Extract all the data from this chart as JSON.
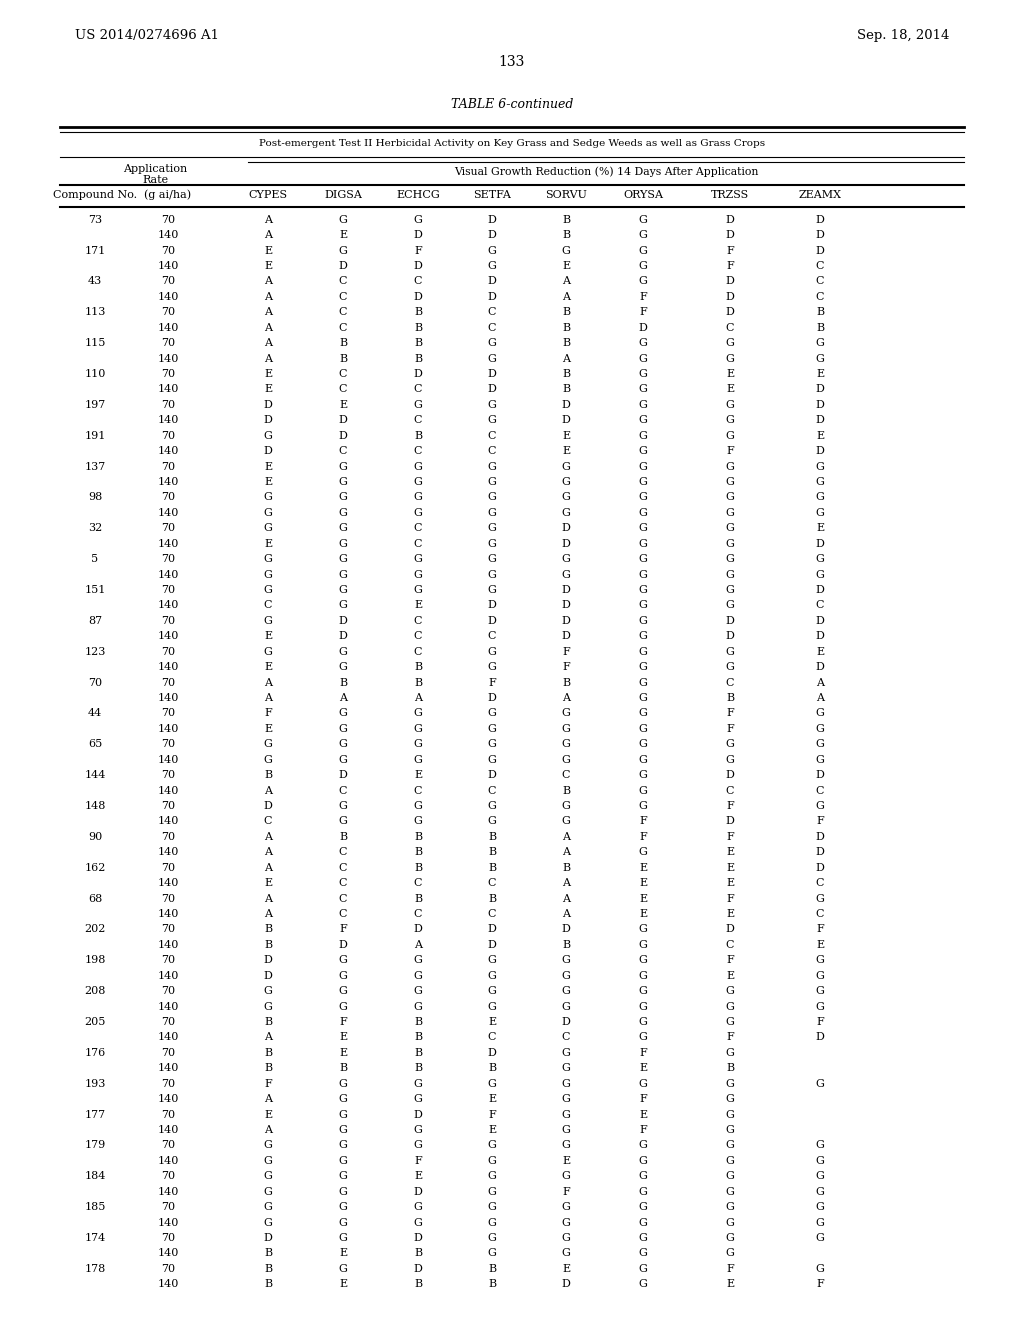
{
  "title_left": "US 2014/0274696 A1",
  "title_right": "Sep. 18, 2014",
  "page_number": "133",
  "table_title": "TABLE 6-continued",
  "subtitle": "Post-emergent Test II Herbicidal Activity on Key Grass and Sedge Weeds as well as Grass Crops",
  "col_headers": [
    "Compound No.",
    "(g ai/ha)",
    "CYPES",
    "DIGSA",
    "ECHCG",
    "SETFA",
    "SORVU",
    "ORYSA",
    "TRZSS",
    "ZEAMX"
  ],
  "rows": [
    [
      "73",
      "70",
      "A",
      "G",
      "G",
      "D",
      "B",
      "G",
      "D",
      "D"
    ],
    [
      "",
      "140",
      "A",
      "E",
      "D",
      "D",
      "B",
      "G",
      "D",
      "D"
    ],
    [
      "171",
      "70",
      "E",
      "G",
      "F",
      "G",
      "G",
      "G",
      "F",
      "D"
    ],
    [
      "",
      "140",
      "E",
      "D",
      "D",
      "G",
      "E",
      "G",
      "F",
      "C"
    ],
    [
      "43",
      "70",
      "A",
      "C",
      "C",
      "D",
      "A",
      "G",
      "D",
      "C"
    ],
    [
      "",
      "140",
      "A",
      "C",
      "D",
      "D",
      "A",
      "F",
      "D",
      "C"
    ],
    [
      "113",
      "70",
      "A",
      "C",
      "B",
      "C",
      "B",
      "F",
      "D",
      "B"
    ],
    [
      "",
      "140",
      "A",
      "C",
      "B",
      "C",
      "B",
      "D",
      "C",
      "B"
    ],
    [
      "115",
      "70",
      "A",
      "B",
      "B",
      "G",
      "B",
      "G",
      "G",
      "G"
    ],
    [
      "",
      "140",
      "A",
      "B",
      "B",
      "G",
      "A",
      "G",
      "G",
      "G"
    ],
    [
      "110",
      "70",
      "E",
      "C",
      "D",
      "D",
      "B",
      "G",
      "E",
      "E"
    ],
    [
      "",
      "140",
      "E",
      "C",
      "C",
      "D",
      "B",
      "G",
      "E",
      "D"
    ],
    [
      "197",
      "70",
      "D",
      "E",
      "G",
      "G",
      "D",
      "G",
      "G",
      "D"
    ],
    [
      "",
      "140",
      "D",
      "D",
      "C",
      "G",
      "D",
      "G",
      "G",
      "D"
    ],
    [
      "191",
      "70",
      "G",
      "D",
      "B",
      "C",
      "E",
      "G",
      "G",
      "E"
    ],
    [
      "",
      "140",
      "D",
      "C",
      "C",
      "C",
      "E",
      "G",
      "F",
      "D"
    ],
    [
      "137",
      "70",
      "E",
      "G",
      "G",
      "G",
      "G",
      "G",
      "G",
      "G"
    ],
    [
      "",
      "140",
      "E",
      "G",
      "G",
      "G",
      "G",
      "G",
      "G",
      "G"
    ],
    [
      "98",
      "70",
      "G",
      "G",
      "G",
      "G",
      "G",
      "G",
      "G",
      "G"
    ],
    [
      "",
      "140",
      "G",
      "G",
      "G",
      "G",
      "G",
      "G",
      "G",
      "G"
    ],
    [
      "32",
      "70",
      "G",
      "G",
      "C",
      "G",
      "D",
      "G",
      "G",
      "E"
    ],
    [
      "",
      "140",
      "E",
      "G",
      "C",
      "G",
      "D",
      "G",
      "G",
      "D"
    ],
    [
      "5",
      "70",
      "G",
      "G",
      "G",
      "G",
      "G",
      "G",
      "G",
      "G"
    ],
    [
      "",
      "140",
      "G",
      "G",
      "G",
      "G",
      "G",
      "G",
      "G",
      "G"
    ],
    [
      "151",
      "70",
      "G",
      "G",
      "G",
      "G",
      "D",
      "G",
      "G",
      "D"
    ],
    [
      "",
      "140",
      "C",
      "G",
      "E",
      "D",
      "D",
      "G",
      "G",
      "C"
    ],
    [
      "87",
      "70",
      "G",
      "D",
      "C",
      "D",
      "D",
      "G",
      "D",
      "D"
    ],
    [
      "",
      "140",
      "E",
      "D",
      "C",
      "C",
      "D",
      "G",
      "D",
      "D"
    ],
    [
      "123",
      "70",
      "G",
      "G",
      "C",
      "G",
      "F",
      "G",
      "G",
      "E"
    ],
    [
      "",
      "140",
      "E",
      "G",
      "B",
      "G",
      "F",
      "G",
      "G",
      "D"
    ],
    [
      "70",
      "70",
      "A",
      "B",
      "B",
      "F",
      "B",
      "G",
      "C",
      "A"
    ],
    [
      "",
      "140",
      "A",
      "A",
      "A",
      "D",
      "A",
      "G",
      "B",
      "A"
    ],
    [
      "44",
      "70",
      "F",
      "G",
      "G",
      "G",
      "G",
      "G",
      "F",
      "G"
    ],
    [
      "",
      "140",
      "E",
      "G",
      "G",
      "G",
      "G",
      "G",
      "F",
      "G"
    ],
    [
      "65",
      "70",
      "G",
      "G",
      "G",
      "G",
      "G",
      "G",
      "G",
      "G"
    ],
    [
      "",
      "140",
      "G",
      "G",
      "G",
      "G",
      "G",
      "G",
      "G",
      "G"
    ],
    [
      "144",
      "70",
      "B",
      "D",
      "E",
      "D",
      "C",
      "G",
      "D",
      "D"
    ],
    [
      "",
      "140",
      "A",
      "C",
      "C",
      "C",
      "B",
      "G",
      "C",
      "C"
    ],
    [
      "148",
      "70",
      "D",
      "G",
      "G",
      "G",
      "G",
      "G",
      "F",
      "G"
    ],
    [
      "",
      "140",
      "C",
      "G",
      "G",
      "G",
      "G",
      "F",
      "D",
      "F"
    ],
    [
      "90",
      "70",
      "A",
      "B",
      "B",
      "B",
      "A",
      "F",
      "F",
      "D"
    ],
    [
      "",
      "140",
      "A",
      "C",
      "B",
      "B",
      "A",
      "G",
      "E",
      "D"
    ],
    [
      "162",
      "70",
      "A",
      "C",
      "B",
      "B",
      "B",
      "E",
      "E",
      "D"
    ],
    [
      "",
      "140",
      "E",
      "C",
      "C",
      "C",
      "A",
      "E",
      "E",
      "C"
    ],
    [
      "68",
      "70",
      "A",
      "C",
      "B",
      "B",
      "A",
      "E",
      "F",
      "G"
    ],
    [
      "",
      "140",
      "A",
      "C",
      "C",
      "C",
      "A",
      "E",
      "E",
      "C"
    ],
    [
      "202",
      "70",
      "B",
      "F",
      "D",
      "D",
      "D",
      "G",
      "D",
      "F"
    ],
    [
      "",
      "140",
      "B",
      "D",
      "A",
      "D",
      "B",
      "G",
      "C",
      "E"
    ],
    [
      "198",
      "70",
      "D",
      "G",
      "G",
      "G",
      "G",
      "G",
      "F",
      "G"
    ],
    [
      "",
      "140",
      "D",
      "G",
      "G",
      "G",
      "G",
      "G",
      "E",
      "G"
    ],
    [
      "208",
      "70",
      "G",
      "G",
      "G",
      "G",
      "G",
      "G",
      "G",
      "G"
    ],
    [
      "",
      "140",
      "G",
      "G",
      "G",
      "G",
      "G",
      "G",
      "G",
      "G"
    ],
    [
      "205",
      "70",
      "B",
      "F",
      "B",
      "E",
      "D",
      "G",
      "G",
      "F"
    ],
    [
      "",
      "140",
      "A",
      "E",
      "B",
      "C",
      "C",
      "G",
      "F",
      "D"
    ],
    [
      "176",
      "70",
      "B",
      "E",
      "B",
      "D",
      "G",
      "F",
      "G",
      ""
    ],
    [
      "",
      "140",
      "B",
      "B",
      "B",
      "B",
      "G",
      "E",
      "B",
      ""
    ],
    [
      "193",
      "70",
      "F",
      "G",
      "G",
      "G",
      "G",
      "G",
      "G",
      "G"
    ],
    [
      "",
      "140",
      "A",
      "G",
      "G",
      "E",
      "G",
      "F",
      "G",
      ""
    ],
    [
      "177",
      "70",
      "E",
      "G",
      "D",
      "F",
      "G",
      "E",
      "G",
      ""
    ],
    [
      "",
      "140",
      "A",
      "G",
      "G",
      "E",
      "G",
      "F",
      "G",
      ""
    ],
    [
      "179",
      "70",
      "G",
      "G",
      "G",
      "G",
      "G",
      "G",
      "G",
      "G"
    ],
    [
      "",
      "140",
      "G",
      "G",
      "F",
      "G",
      "E",
      "G",
      "G",
      "G"
    ],
    [
      "184",
      "70",
      "G",
      "G",
      "E",
      "G",
      "G",
      "G",
      "G",
      "G"
    ],
    [
      "",
      "140",
      "G",
      "G",
      "D",
      "G",
      "F",
      "G",
      "G",
      "G"
    ],
    [
      "185",
      "70",
      "G",
      "G",
      "G",
      "G",
      "G",
      "G",
      "G",
      "G"
    ],
    [
      "",
      "140",
      "G",
      "G",
      "G",
      "G",
      "G",
      "G",
      "G",
      "G"
    ],
    [
      "174",
      "70",
      "D",
      "G",
      "D",
      "G",
      "G",
      "G",
      "G",
      "G"
    ],
    [
      "",
      "140",
      "B",
      "E",
      "B",
      "G",
      "G",
      "G",
      "G",
      ""
    ],
    [
      "178",
      "70",
      "B",
      "G",
      "D",
      "B",
      "E",
      "G",
      "F",
      "G"
    ],
    [
      "",
      "140",
      "B",
      "E",
      "B",
      "B",
      "D",
      "G",
      "E",
      "F"
    ]
  ],
  "background_color": "#ffffff",
  "text_color": "#000000",
  "font_size": 8.0,
  "header_font_size": 8.0
}
